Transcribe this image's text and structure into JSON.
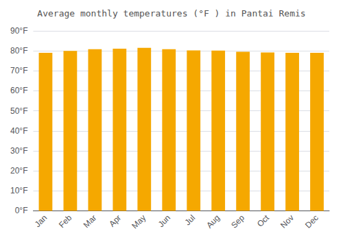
{
  "chart_data": {
    "type": "bar",
    "title": "Average monthly temperatures (°F ) in Pantai Remis",
    "categories": [
      "Jan",
      "Feb",
      "Mar",
      "Apr",
      "May",
      "Jun",
      "Jul",
      "Aug",
      "Sep",
      "Oct",
      "Nov",
      "Dec"
    ],
    "values": [
      79.0,
      80.0,
      80.8,
      81.1,
      81.5,
      80.8,
      80.2,
      80.1,
      79.5,
      79.2,
      79.0,
      79.0
    ],
    "color": "#F5A800",
    "ylim": [
      0,
      90
    ],
    "yticks": [
      {
        "value": 0,
        "label": "0°F"
      },
      {
        "value": 10,
        "label": "10°F"
      },
      {
        "value": 20,
        "label": "20°F"
      },
      {
        "value": 30,
        "label": "30°F"
      },
      {
        "value": 40,
        "label": "40°F"
      },
      {
        "value": 50,
        "label": "50°F"
      },
      {
        "value": 60,
        "label": "60°F"
      },
      {
        "value": 70,
        "label": "70°F"
      },
      {
        "value": 80,
        "label": "80°F"
      },
      {
        "value": 90,
        "label": "90°F"
      }
    ],
    "grid": true
  }
}
